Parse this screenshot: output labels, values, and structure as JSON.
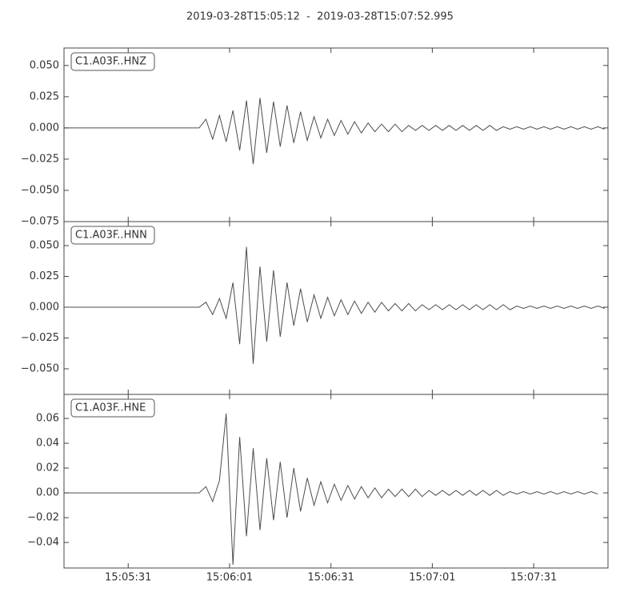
{
  "chart_data": {
    "type": "line",
    "title": "2019-03-28T15:05:12  -  2019-03-28T15:07:52.995",
    "color": "#4d4d4d",
    "xlim": [
      "15:05:12",
      "15:07:52.995"
    ],
    "xticks": [
      "15:05:31",
      "15:06:01",
      "15:06:31",
      "15:07:01",
      "15:07:31"
    ],
    "x": [
      "15:05:12",
      "15:05:14",
      "15:05:16",
      "15:05:18",
      "15:05:20",
      "15:05:22",
      "15:05:24",
      "15:05:26",
      "15:05:28",
      "15:05:30",
      "15:05:32",
      "15:05:34",
      "15:05:36",
      "15:05:38",
      "15:05:40",
      "15:05:42",
      "15:05:44",
      "15:05:46",
      "15:05:48",
      "15:05:50",
      "15:05:52",
      "15:05:54",
      "15:05:56",
      "15:05:58",
      "15:06:00",
      "15:06:02",
      "15:06:04",
      "15:06:06",
      "15:06:08",
      "15:06:10",
      "15:06:12",
      "15:06:14",
      "15:06:16",
      "15:06:18",
      "15:06:20",
      "15:06:22",
      "15:06:24",
      "15:06:26",
      "15:06:28",
      "15:06:30",
      "15:06:32",
      "15:06:34",
      "15:06:36",
      "15:06:38",
      "15:06:40",
      "15:06:42",
      "15:06:44",
      "15:06:46",
      "15:06:48",
      "15:06:50",
      "15:06:52",
      "15:06:54",
      "15:06:56",
      "15:06:58",
      "15:07:00",
      "15:07:02",
      "15:07:04",
      "15:07:06",
      "15:07:08",
      "15:07:10",
      "15:07:12",
      "15:07:14",
      "15:07:16",
      "15:07:18",
      "15:07:20",
      "15:07:22",
      "15:07:24",
      "15:07:26",
      "15:07:28",
      "15:07:30",
      "15:07:32",
      "15:07:34",
      "15:07:36",
      "15:07:38",
      "15:07:40",
      "15:07:42",
      "15:07:44",
      "15:07:46",
      "15:07:48",
      "15:07:50",
      "15:07:52"
    ],
    "panels": [
      {
        "label": "C1.A03F..HNZ",
        "ylim": [
          -0.075,
          0.064
        ],
        "yticks": [
          {
            "value": 0.05,
            "label": "0.050"
          },
          {
            "value": 0.025,
            "label": "0.025"
          },
          {
            "value": 0,
            "label": "0.000"
          },
          {
            "value": -0.025,
            "label": "−0.025"
          },
          {
            "value": -0.05,
            "label": "−0.050"
          },
          {
            "value": -0.075,
            "label": "−0.075"
          }
        ],
        "values": [
          0,
          0,
          0,
          0,
          0,
          0,
          0,
          0,
          0,
          0,
          0,
          0,
          0,
          0,
          0,
          0,
          0,
          0,
          0,
          0,
          0,
          0.007,
          -0.009,
          0.01,
          -0.011,
          0.014,
          -0.018,
          0.022,
          -0.029,
          0.024,
          -0.02,
          0.021,
          -0.015,
          0.018,
          -0.012,
          0.013,
          -0.01,
          0.009,
          -0.008,
          0.007,
          -0.006,
          0.006,
          -0.005,
          0.005,
          -0.004,
          0.004,
          -0.003,
          0.003,
          -0.003,
          0.003,
          -0.003,
          0.002,
          -0.002,
          0.002,
          -0.002,
          0.002,
          -0.002,
          0.002,
          -0.002,
          0.002,
          -0.002,
          0.002,
          -0.002,
          0.002,
          -0.002,
          0.001,
          -0.001,
          0.001,
          -0.001,
          0.001,
          -0.001,
          0.001,
          -0.001,
          0.001,
          -0.001,
          0.001,
          -0.001,
          0.001,
          -0.001,
          0.001,
          -0.001
        ]
      },
      {
        "label": "C1.A03F..HNN",
        "ylim": [
          -0.0708,
          0.0695
        ],
        "yticks": [
          {
            "value": 0.05,
            "label": "0.050"
          },
          {
            "value": 0.025,
            "label": "0.025"
          },
          {
            "value": 0,
            "label": "0.000"
          },
          {
            "value": -0.025,
            "label": "−0.025"
          },
          {
            "value": -0.05,
            "label": "−0.050"
          }
        ],
        "values": [
          0,
          0,
          0,
          0,
          0,
          0,
          0,
          0,
          0,
          0,
          0,
          0,
          0,
          0,
          0,
          0,
          0,
          0,
          0,
          0,
          0,
          0.004,
          -0.006,
          0.007,
          -0.009,
          0.02,
          -0.03,
          0.049,
          -0.046,
          0.033,
          -0.028,
          0.03,
          -0.024,
          0.02,
          -0.015,
          0.015,
          -0.012,
          0.01,
          -0.009,
          0.008,
          -0.007,
          0.006,
          -0.006,
          0.005,
          -0.005,
          0.004,
          -0.004,
          0.004,
          -0.003,
          0.003,
          -0.003,
          0.003,
          -0.003,
          0.002,
          -0.002,
          0.002,
          -0.002,
          0.002,
          -0.002,
          0.002,
          -0.002,
          0.002,
          -0.002,
          0.002,
          -0.002,
          0.002,
          -0.002,
          0.001,
          -0.001,
          0.001,
          -0.001,
          0.001,
          -0.001,
          0.001,
          -0.001,
          0.001,
          -0.001,
          0.001,
          -0.001,
          0.001,
          -0.001
        ]
      },
      {
        "label": "C1.A03F..HNE",
        "ylim": [
          -0.0606,
          0.0794
        ],
        "yticks": [
          {
            "value": 0.06,
            "label": "0.06"
          },
          {
            "value": 0.04,
            "label": "0.04"
          },
          {
            "value": 0.02,
            "label": "0.02"
          },
          {
            "value": 0,
            "label": "0.00"
          },
          {
            "value": -0.02,
            "label": "−0.02"
          },
          {
            "value": -0.04,
            "label": "−0.04"
          }
        ],
        "values": [
          0,
          0,
          0,
          0,
          0,
          0,
          0,
          0,
          0,
          0,
          0,
          0,
          0,
          0,
          0,
          0,
          0,
          0,
          0,
          0,
          0,
          0.005,
          -0.007,
          0.01,
          0.064,
          -0.058,
          0.045,
          -0.035,
          0.036,
          -0.03,
          0.028,
          -0.022,
          0.025,
          -0.02,
          0.02,
          -0.015,
          0.012,
          -0.01,
          0.009,
          -0.008,
          0.007,
          -0.006,
          0.006,
          -0.005,
          0.005,
          -0.004,
          0.004,
          -0.004,
          0.003,
          -0.003,
          0.003,
          -0.003,
          0.003,
          -0.003,
          0.002,
          -0.002,
          0.002,
          -0.002,
          0.002,
          -0.002,
          0.002,
          -0.002,
          0.002,
          -0.002,
          0.002,
          -0.002,
          0.001,
          -0.001,
          0.001,
          -0.001,
          0.001,
          -0.001,
          0.001,
          -0.001,
          0.001,
          -0.001,
          0.001,
          -0.001,
          0.001,
          -0.001
        ]
      }
    ]
  }
}
